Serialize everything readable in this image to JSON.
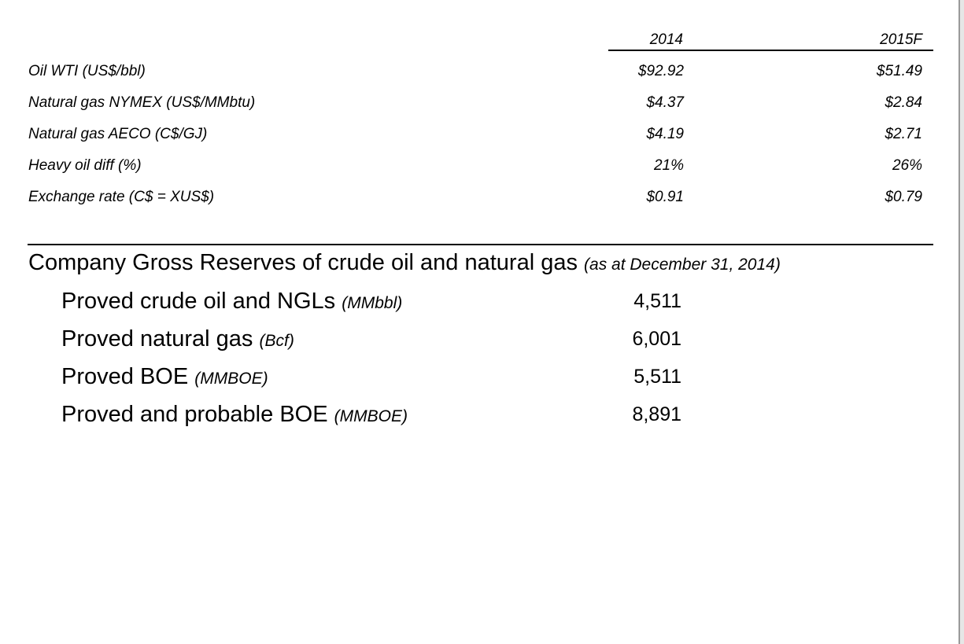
{
  "pricing": {
    "columns": [
      "2014",
      "2015F"
    ],
    "rows": [
      {
        "label": "Oil WTI (US$/bbl)",
        "v2014": "$92.92",
        "v2015": "$51.49"
      },
      {
        "label": "Natural gas NYMEX (US$/MMbtu)",
        "v2014": "$4.37",
        "v2015": "$2.84"
      },
      {
        "label": "Natural gas AECO (C$/GJ)",
        "v2014": "$4.19",
        "v2015": "$2.71"
      },
      {
        "label": "Heavy oil diff (%)",
        "v2014": "21%",
        "v2015": "26%"
      },
      {
        "label": "Exchange rate (C$ = XUS$)",
        "v2014": "$0.91",
        "v2015": "$0.79"
      }
    ]
  },
  "reserves": {
    "title": "Company Gross Reserves of crude oil and natural gas",
    "title_note": "(as at December 31, 2014)",
    "rows": [
      {
        "label": "Proved crude oil and NGLs",
        "unit": "(MMbbl)",
        "value": "4,511"
      },
      {
        "label": "Proved natural gas",
        "unit": "(Bcf)",
        "value": "6,001"
      },
      {
        "label": "Proved BOE",
        "unit": "(MMBOE)",
        "value": "5,511"
      },
      {
        "label": "Proved and probable BOE",
        "unit": "(MMBOE)",
        "value": "8,891"
      }
    ]
  }
}
